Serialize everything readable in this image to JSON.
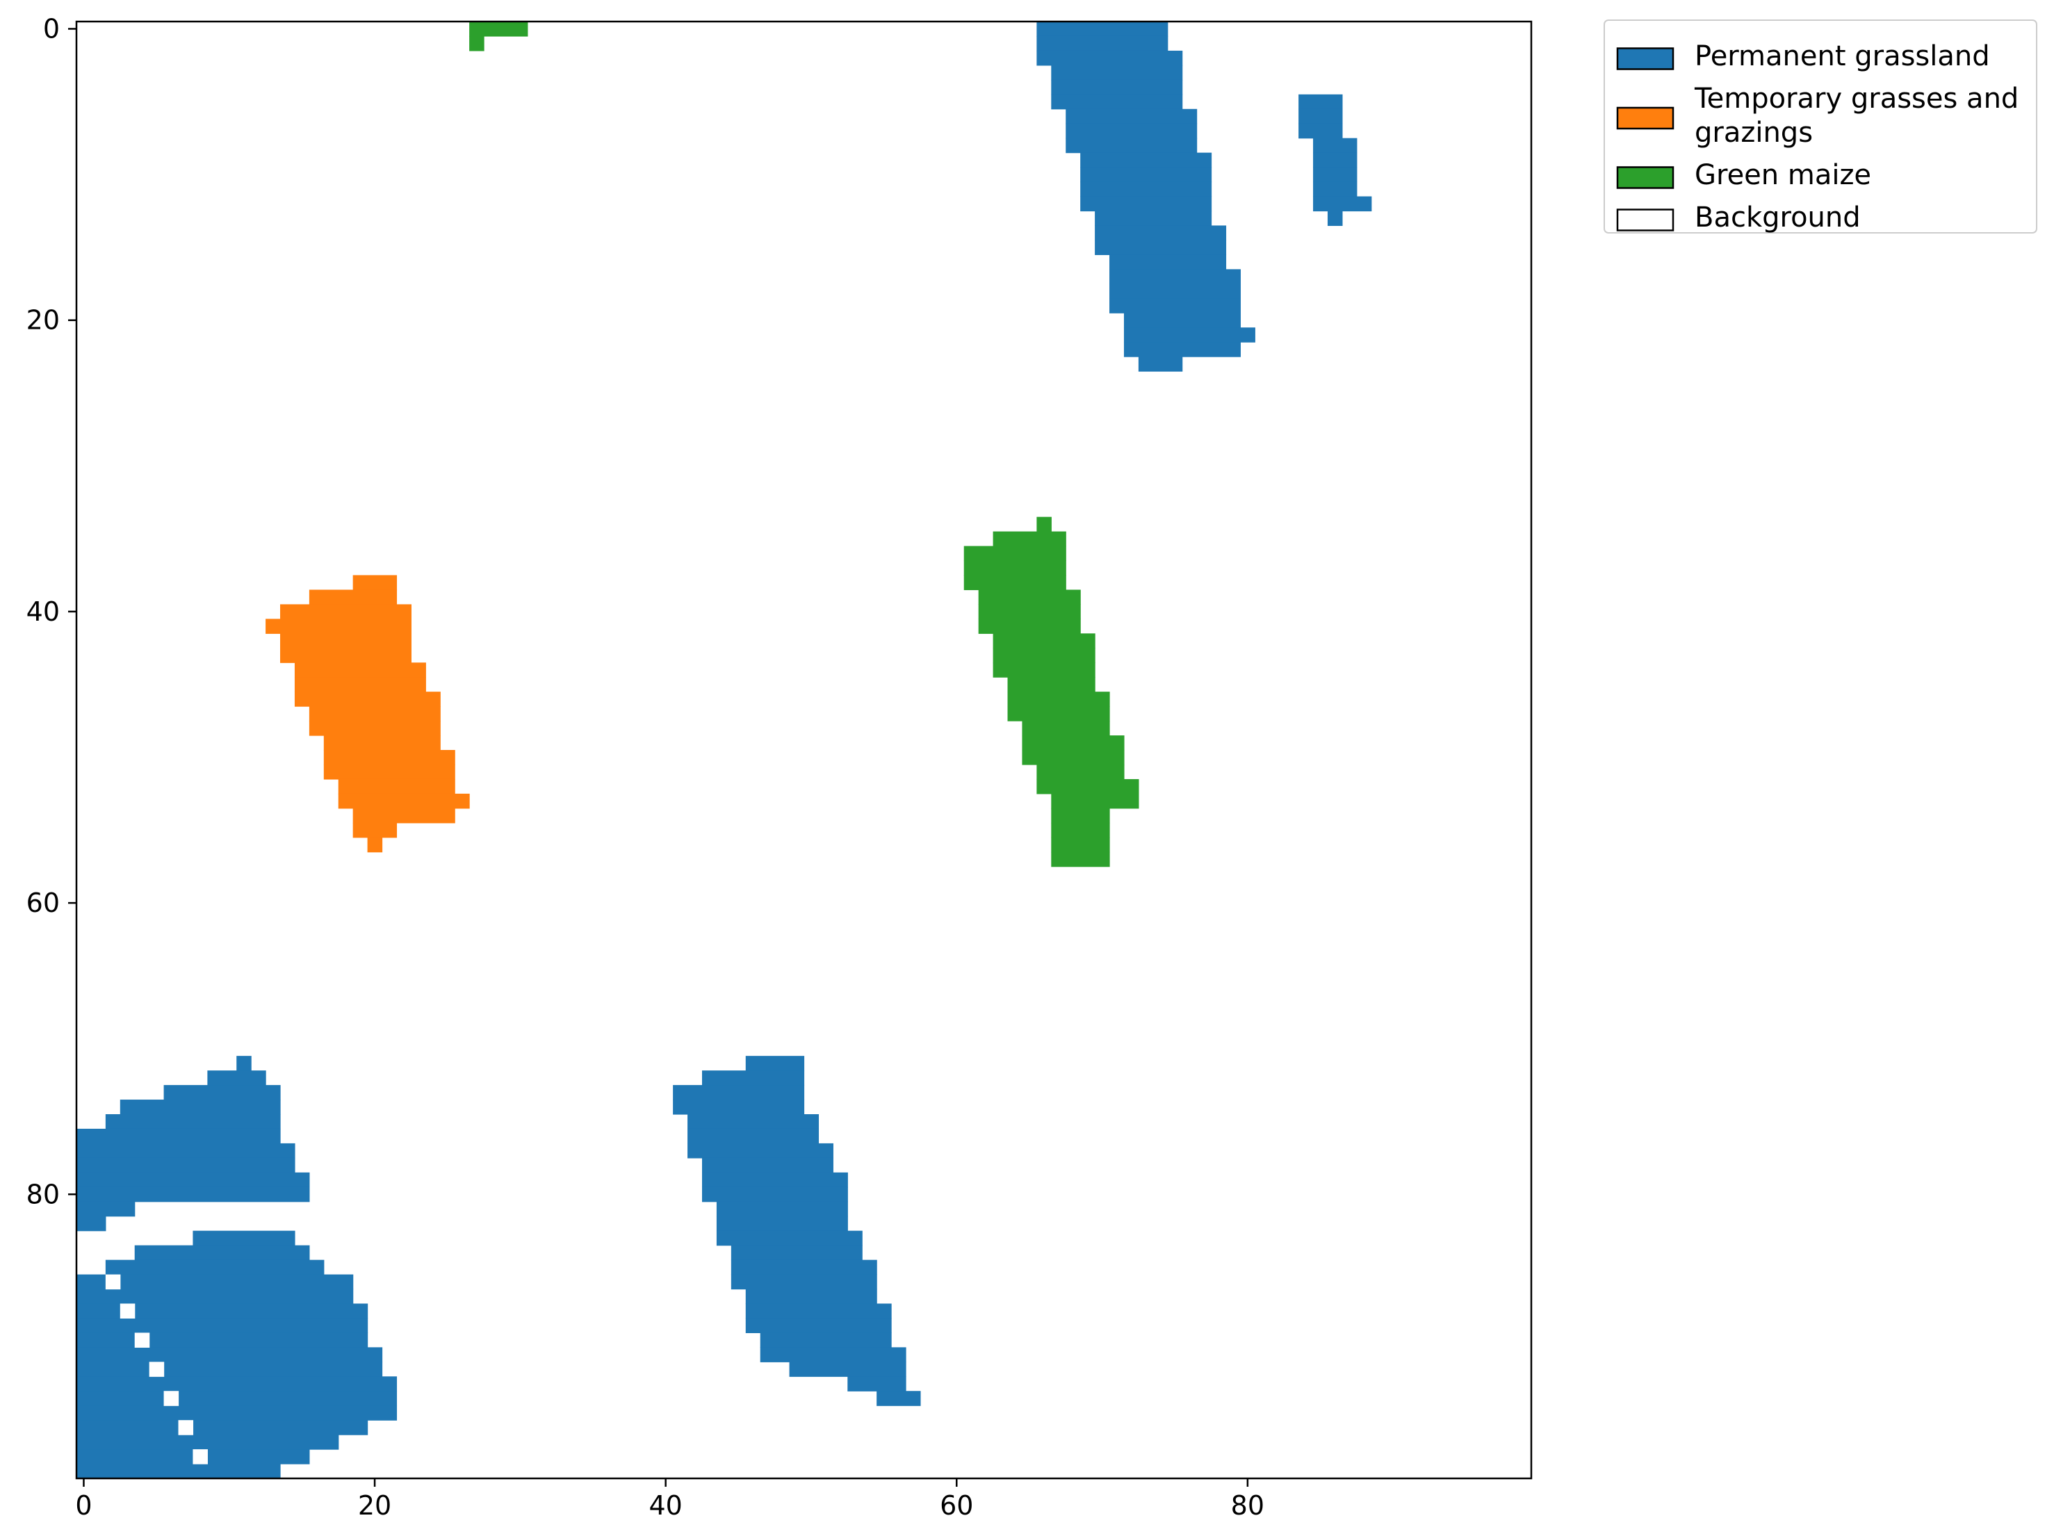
{
  "chart_data": {
    "type": "heatmap",
    "title": "",
    "xlabel": "",
    "ylabel": "",
    "xlim": [
      -0.5,
      99.5
    ],
    "ylim": [
      99.5,
      -0.5
    ],
    "x_ticks": [
      0,
      20,
      40,
      60,
      80
    ],
    "y_ticks": [
      0,
      20,
      40,
      60,
      80
    ],
    "x_tick_labels": [
      "0",
      "20",
      "40",
      "60",
      "80"
    ],
    "y_tick_labels": [
      "0",
      "20",
      "40",
      "60",
      "80"
    ],
    "grid": false,
    "legend_position": "outside top-right",
    "classes": [
      {
        "name": "Permanent grassland",
        "color": "#1f77b4"
      },
      {
        "name": "Temporary grasses and grazings",
        "color": "#ff7f0e"
      },
      {
        "name": "Green maize",
        "color": "#2ca02c"
      },
      {
        "name": "Background",
        "color": "#ffffff"
      }
    ],
    "regions": [
      {
        "class": "Green maize",
        "rows": [
          [
            0,
            27,
            30
          ],
          [
            1,
            27,
            27
          ]
        ]
      },
      {
        "class": "Permanent grassland",
        "rows": [
          [
            0,
            66,
            74
          ],
          [
            1,
            66,
            74
          ],
          [
            2,
            66,
            75
          ],
          [
            3,
            67,
            75
          ],
          [
            4,
            67,
            75
          ],
          [
            5,
            67,
            75
          ],
          [
            6,
            68,
            76
          ],
          [
            7,
            68,
            76
          ],
          [
            8,
            68,
            76
          ],
          [
            9,
            69,
            77
          ],
          [
            10,
            69,
            77
          ],
          [
            11,
            69,
            77
          ],
          [
            12,
            69,
            77
          ],
          [
            13,
            70,
            77
          ],
          [
            14,
            70,
            78
          ],
          [
            15,
            70,
            78
          ],
          [
            16,
            71,
            78
          ],
          [
            17,
            71,
            79
          ],
          [
            18,
            71,
            79
          ],
          [
            19,
            71,
            79
          ],
          [
            20,
            72,
            79
          ],
          [
            21,
            72,
            80
          ],
          [
            22,
            72,
            79
          ],
          [
            23,
            73,
            75
          ]
        ]
      },
      {
        "class": "Permanent grassland",
        "rows": [
          [
            5,
            84,
            86
          ],
          [
            6,
            84,
            86
          ],
          [
            7,
            84,
            86
          ],
          [
            8,
            85,
            87
          ],
          [
            9,
            85,
            87
          ],
          [
            10,
            85,
            87
          ],
          [
            11,
            85,
            87
          ],
          [
            12,
            85,
            88
          ],
          [
            13,
            86,
            86
          ]
        ]
      },
      {
        "class": "Temporary grasses and grazings",
        "rows": [
          [
            38,
            19,
            21
          ],
          [
            39,
            16,
            21
          ],
          [
            40,
            14,
            22
          ],
          [
            41,
            13,
            22
          ],
          [
            42,
            14,
            22
          ],
          [
            43,
            14,
            22
          ],
          [
            44,
            15,
            23
          ],
          [
            45,
            15,
            23
          ],
          [
            46,
            15,
            24
          ],
          [
            47,
            16,
            24
          ],
          [
            48,
            16,
            24
          ],
          [
            49,
            17,
            24
          ],
          [
            50,
            17,
            25
          ],
          [
            51,
            17,
            25
          ],
          [
            52,
            18,
            25
          ],
          [
            53,
            18,
            26
          ],
          [
            54,
            19,
            25
          ],
          [
            55,
            19,
            21
          ],
          [
            56,
            20,
            20
          ]
        ]
      },
      {
        "class": "Green maize",
        "rows": [
          [
            34,
            66,
            66
          ],
          [
            35,
            63,
            67
          ],
          [
            36,
            61,
            67
          ],
          [
            37,
            61,
            67
          ],
          [
            38,
            61,
            67
          ],
          [
            39,
            62,
            68
          ],
          [
            40,
            62,
            68
          ],
          [
            41,
            62,
            68
          ],
          [
            42,
            63,
            69
          ],
          [
            43,
            63,
            69
          ],
          [
            44,
            63,
            69
          ],
          [
            45,
            64,
            69
          ],
          [
            46,
            64,
            70
          ],
          [
            47,
            64,
            70
          ],
          [
            48,
            65,
            70
          ],
          [
            49,
            65,
            71
          ],
          [
            50,
            65,
            71
          ],
          [
            51,
            66,
            71
          ],
          [
            52,
            66,
            72
          ],
          [
            53,
            67,
            72
          ],
          [
            54,
            67,
            70
          ],
          [
            55,
            67,
            70
          ],
          [
            56,
            67,
            70
          ],
          [
            57,
            67,
            70
          ]
        ]
      },
      {
        "class": "Permanent grassland",
        "rows": [
          [
            71,
            11,
            11
          ],
          [
            72,
            9,
            12
          ],
          [
            73,
            6,
            13
          ],
          [
            74,
            3,
            13
          ],
          [
            75,
            2,
            13
          ],
          [
            76,
            0,
            13
          ],
          [
            77,
            0,
            14
          ],
          [
            78,
            0,
            14
          ],
          [
            79,
            0,
            15
          ],
          [
            80,
            0,
            15
          ],
          [
            81,
            0,
            3
          ],
          [
            82,
            0,
            1
          ]
        ]
      },
      {
        "class": "Permanent grassland",
        "rows": [
          [
            83,
            8,
            14
          ],
          [
            84,
            4,
            15
          ],
          [
            85,
            2,
            16
          ],
          [
            86,
            0,
            18
          ],
          [
            87,
            0,
            18
          ],
          [
            88,
            0,
            19
          ],
          [
            89,
            0,
            19
          ],
          [
            90,
            0,
            19
          ],
          [
            91,
            0,
            20
          ],
          [
            92,
            0,
            20
          ],
          [
            93,
            0,
            21
          ],
          [
            94,
            0,
            21
          ],
          [
            95,
            0,
            21
          ],
          [
            96,
            0,
            19
          ],
          [
            97,
            0,
            17
          ],
          [
            98,
            0,
            15
          ],
          [
            99,
            0,
            13
          ]
        ]
      },
      {
        "class": "Background",
        "rows": [
          [
            86,
            2,
            2
          ],
          [
            88,
            3,
            3
          ],
          [
            90,
            4,
            4
          ],
          [
            92,
            5,
            5
          ],
          [
            94,
            6,
            6
          ],
          [
            96,
            7,
            7
          ],
          [
            98,
            8,
            8
          ]
        ]
      },
      {
        "class": "Permanent grassland",
        "rows": [
          [
            71,
            46,
            49
          ],
          [
            72,
            43,
            49
          ],
          [
            73,
            41,
            49
          ],
          [
            74,
            41,
            49
          ],
          [
            75,
            42,
            50
          ],
          [
            76,
            42,
            50
          ],
          [
            77,
            42,
            51
          ],
          [
            78,
            43,
            51
          ],
          [
            79,
            43,
            52
          ],
          [
            80,
            43,
            52
          ],
          [
            81,
            44,
            52
          ],
          [
            82,
            44,
            52
          ],
          [
            83,
            44,
            53
          ],
          [
            84,
            45,
            53
          ],
          [
            85,
            45,
            54
          ],
          [
            86,
            45,
            54
          ],
          [
            87,
            46,
            54
          ],
          [
            88,
            46,
            55
          ],
          [
            89,
            46,
            55
          ],
          [
            90,
            47,
            55
          ],
          [
            91,
            47,
            56
          ],
          [
            92,
            49,
            56
          ],
          [
            93,
            53,
            56
          ],
          [
            94,
            55,
            57
          ]
        ]
      }
    ]
  }
}
